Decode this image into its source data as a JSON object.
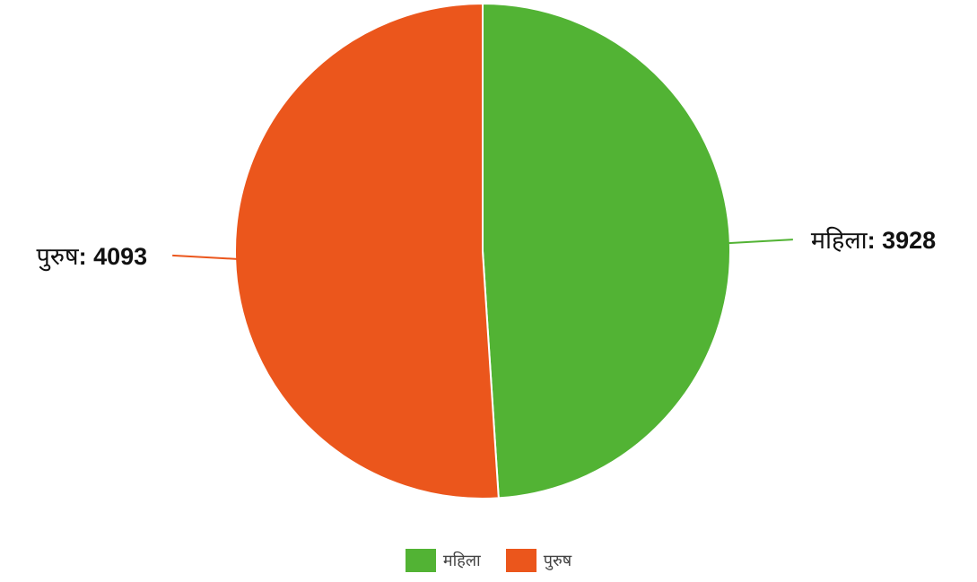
{
  "chart_data": {
    "type": "pie",
    "title": "",
    "slices": [
      {
        "label": "महिला",
        "value": 3928,
        "color": "#52b334"
      },
      {
        "label": "पुरुष",
        "value": 4093,
        "color": "#eb561c"
      }
    ],
    "label_separator": ": ",
    "legend_position": "bottom",
    "start_angle_deg": 0,
    "direction": "clockwise"
  },
  "legend": {
    "items": [
      {
        "label": "महिला",
        "color": "#52b334"
      },
      {
        "label": "पुरुष",
        "color": "#eb561c"
      }
    ]
  }
}
